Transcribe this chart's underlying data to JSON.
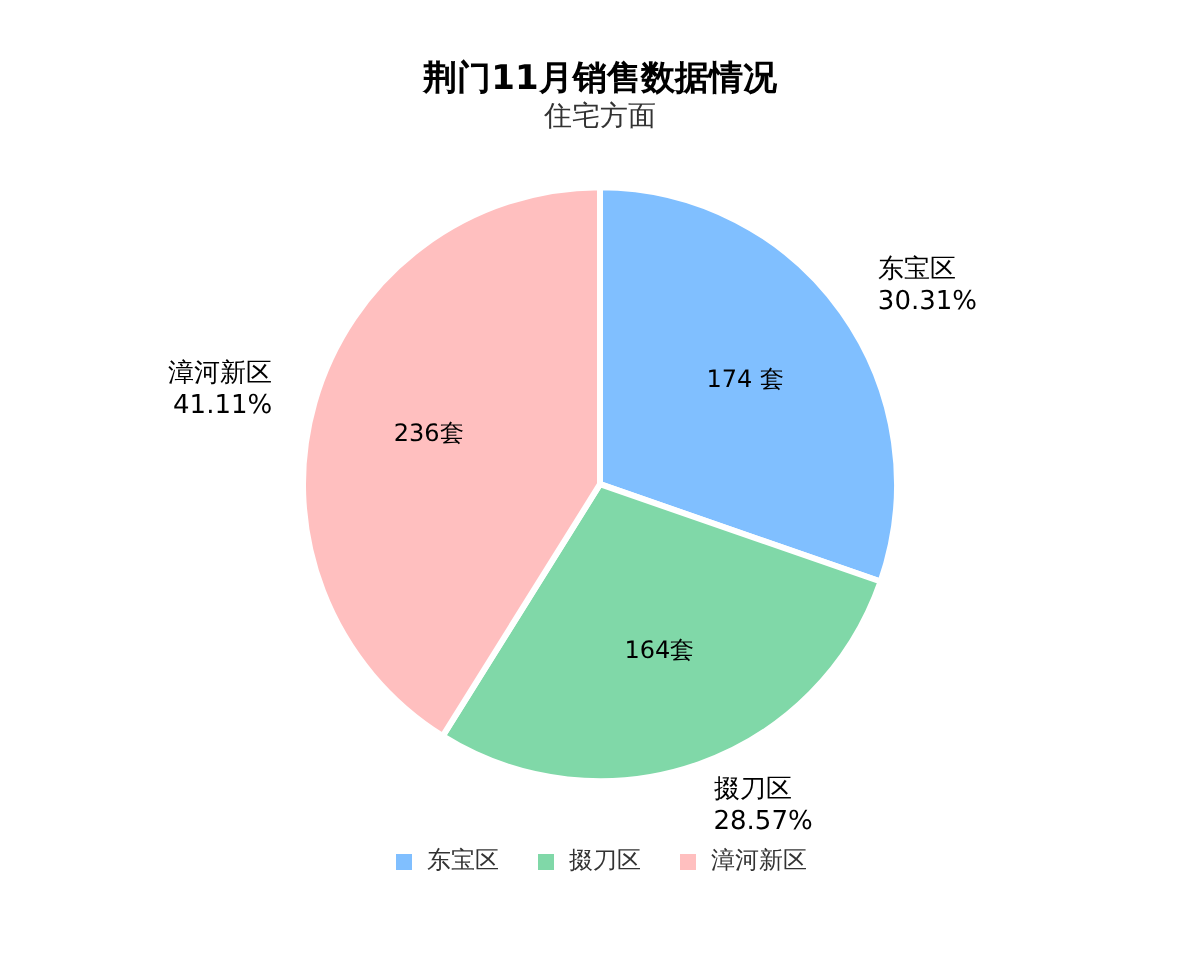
{
  "chart_data": {
    "type": "pie",
    "title": "荆门11月销售数据情况",
    "subtitle": "住宅方面",
    "categories": [
      "东宝区",
      "掇刀区",
      "漳河新区"
    ],
    "values": [
      174,
      164,
      236
    ],
    "colors": [
      "#80bfff",
      "#80d8a8",
      "#ffbfbf"
    ],
    "value_labels": [
      "174 套",
      "164套",
      "236套"
    ],
    "annotations": [
      "30.31%",
      "28.57%",
      "41.11%"
    ],
    "legend": "bottom"
  }
}
